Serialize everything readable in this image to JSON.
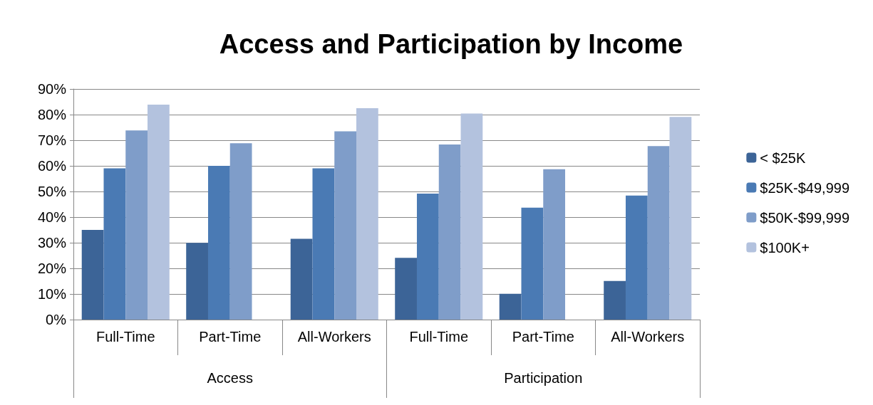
{
  "chart_data": {
    "type": "bar",
    "title": "Access and Participation by Income",
    "categories": [
      "Full-Time",
      "Part-Time",
      "All-Workers",
      "Full-Time",
      "Part-Time",
      "All-Workers"
    ],
    "annotations": [
      "Access",
      "Participation"
    ],
    "series": [
      {
        "name": "< $25K",
        "color": "#3c6497",
        "values": [
          35,
          29.9,
          31.5,
          24.1,
          10.1,
          15.1
        ]
      },
      {
        "name": "$25K-$49,999",
        "color": "#4a7ab4",
        "values": [
          59,
          60,
          59,
          49.2,
          43.7,
          48.4
        ]
      },
      {
        "name": "$50K-$99,999",
        "color": "#7f9dc9",
        "values": [
          73.8,
          68.8,
          73.5,
          68.3,
          58.7,
          67.7
        ]
      },
      {
        "name": "$100K+",
        "color": "#b3c2de",
        "values": [
          83.9,
          null,
          82.5,
          80.4,
          null,
          79.1
        ]
      }
    ],
    "ylim": [
      0,
      90
    ],
    "yticks": [
      {
        "value": 0,
        "label": "0%"
      },
      {
        "value": 10,
        "label": "10%"
      },
      {
        "value": 20,
        "label": "20%"
      },
      {
        "value": 30,
        "label": "30%"
      },
      {
        "value": 40,
        "label": "40%"
      },
      {
        "value": 50,
        "label": "50%"
      },
      {
        "value": 60,
        "label": "60%"
      },
      {
        "value": 70,
        "label": "70%"
      },
      {
        "value": 80,
        "label": "80%"
      },
      {
        "value": 90,
        "label": "90%"
      }
    ],
    "grid": "y",
    "legend": "right"
  }
}
